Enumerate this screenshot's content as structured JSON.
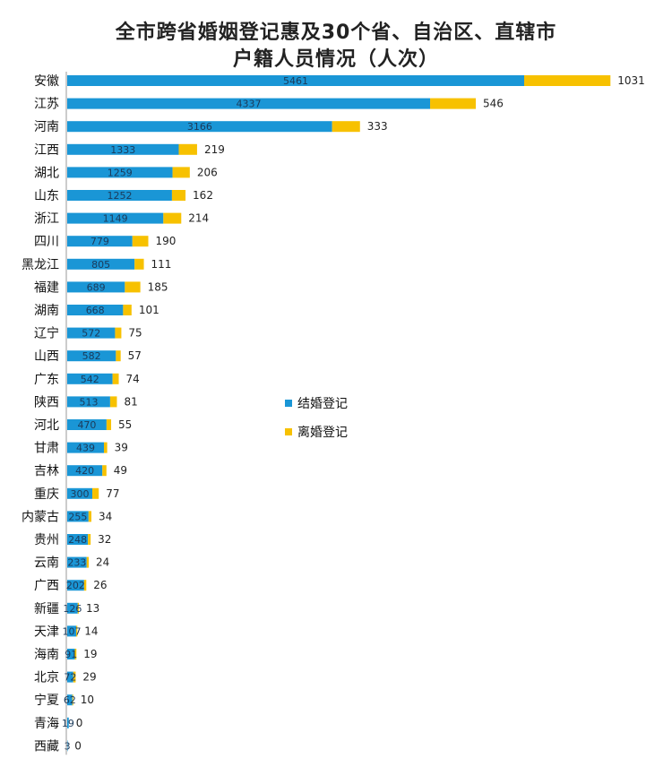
{
  "chart_data": {
    "type": "bar",
    "orientation": "horizontal",
    "stacked": true,
    "title": "全市跨省婚姻登记惠及30个省、自治区、直辖市",
    "subtitle": "户籍人员情况（人次）",
    "categories": [
      "安徽",
      "江苏",
      "河南",
      "江西",
      "湖北",
      "山东",
      "浙江",
      "四川",
      "黑龙江",
      "福建",
      "湖南",
      "辽宁",
      "山西",
      "广东",
      "陕西",
      "河北",
      "甘肃",
      "吉林",
      "重庆",
      "内蒙古",
      "贵州",
      "云南",
      "广西",
      "新疆",
      "天津",
      "海南",
      "北京",
      "宁夏",
      "青海",
      "西藏"
    ],
    "series": [
      {
        "name": "结婚登记",
        "color": "#1a96d6",
        "values": [
          5461,
          4337,
          3166,
          1333,
          1259,
          1252,
          1149,
          779,
          805,
          689,
          668,
          572,
          582,
          542,
          513,
          470,
          439,
          420,
          300,
          255,
          248,
          233,
          202,
          126,
          107,
          91,
          72,
          62,
          19,
          3
        ]
      },
      {
        "name": "离婚登记",
        "color": "#f7c100",
        "values": [
          1031,
          546,
          333,
          219,
          206,
          162,
          214,
          190,
          111,
          185,
          101,
          75,
          57,
          74,
          81,
          55,
          39,
          49,
          77,
          34,
          32,
          24,
          26,
          13,
          14,
          19,
          29,
          10,
          0,
          0
        ]
      }
    ],
    "legend_position": "right",
    "grid": false
  }
}
